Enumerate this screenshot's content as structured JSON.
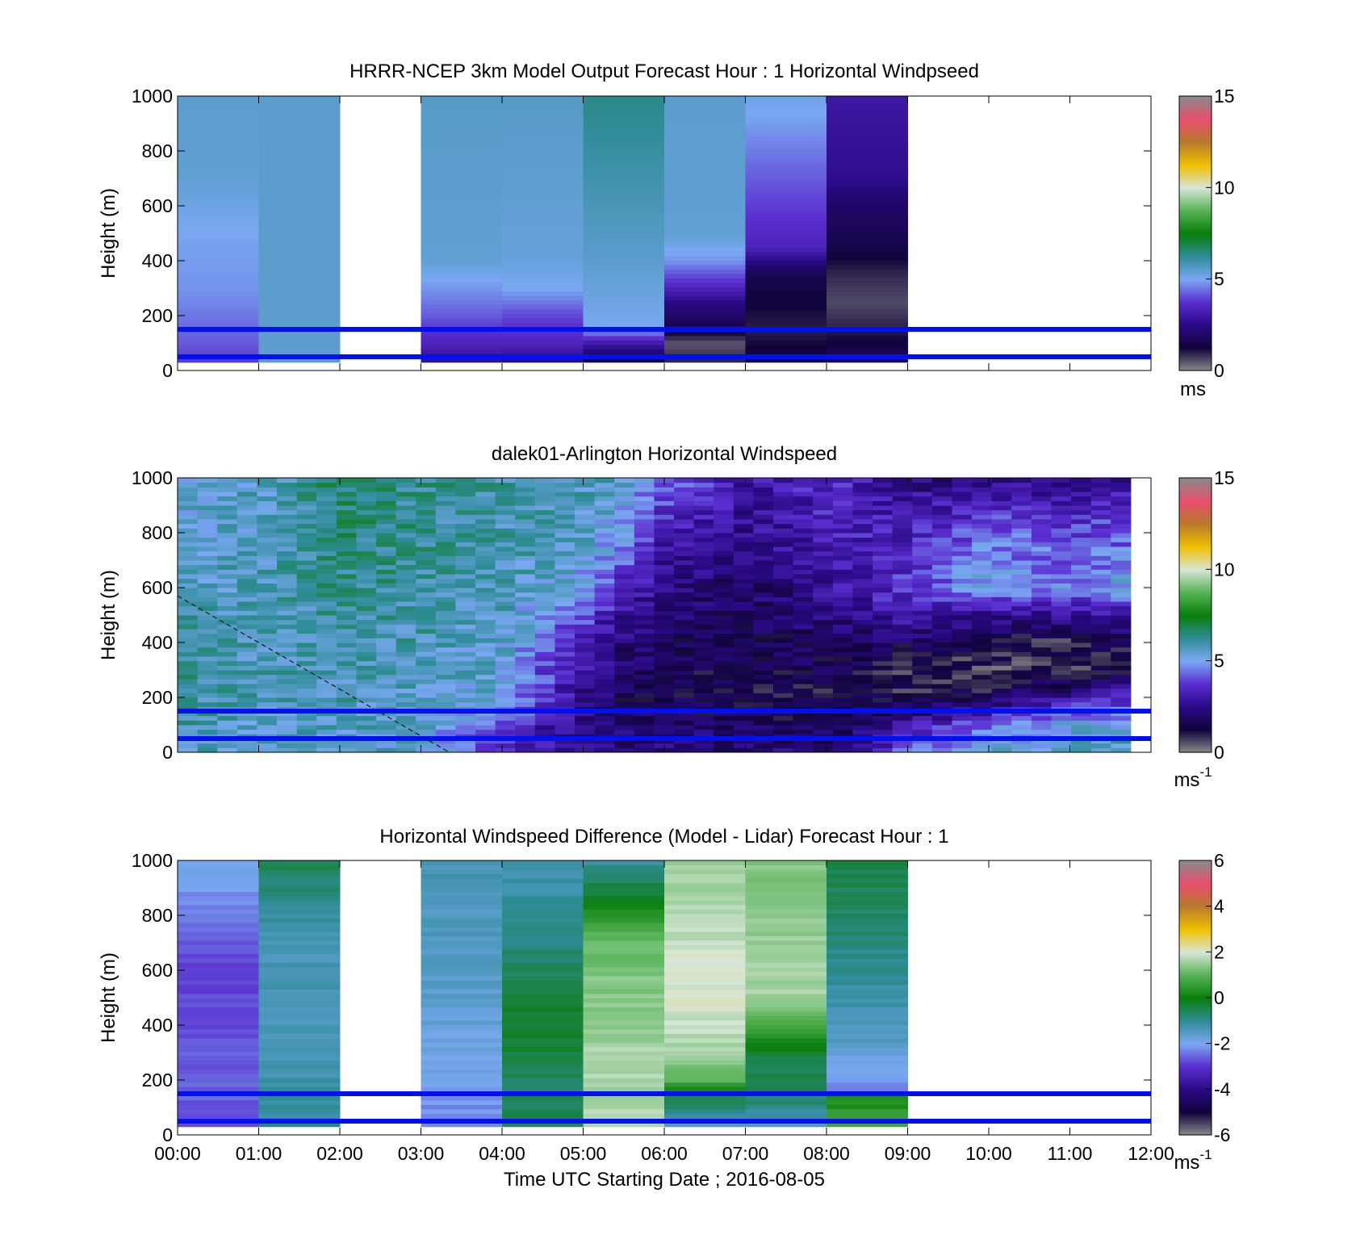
{
  "colors": {
    "speed_colormap": [
      "#8a8a8a",
      "#11043a",
      "#2a0a86",
      "#5a2ed0",
      "#7aa8f2",
      "#2e8c96",
      "#0a7e0a",
      "#56b356",
      "#d7e6d7",
      "#f0c000",
      "#b77a2c",
      "#e8506e",
      "#8a8a8a"
    ],
    "diff_colormap": [
      "#8a8a8a",
      "#11043a",
      "#2a0a86",
      "#5a2ed0",
      "#7aa8f2",
      "#2e8c96",
      "#0a7e0a",
      "#56b356",
      "#d7e6d7",
      "#f0c000",
      "#b77a2c",
      "#e8506e",
      "#8a8a8a"
    ],
    "reference_lines": "#0010ee"
  },
  "chart_data": [
    {
      "type": "heatmap",
      "title": "HRRR-NCEP 3km Model Output   Forecast Hour : 1 Horizontal Windpseed",
      "xlabel": "",
      "ylabel": "Height (m)",
      "xlim": [
        "00:00",
        "12:00"
      ],
      "ylim": [
        0,
        1000
      ],
      "xticks": [
        "00:00",
        "01:00",
        "02:00",
        "03:00",
        "04:00",
        "05:00",
        "06:00",
        "07:00",
        "08:00",
        "09:00",
        "10:00",
        "11:00",
        "12:00"
      ],
      "yticks": [
        "0",
        "200",
        "400",
        "600",
        "800",
        "1000"
      ],
      "show_xtick_labels": false,
      "colorbar": {
        "min": 0,
        "max": 15,
        "ticks": [
          "0",
          "5",
          "10",
          "15"
        ],
        "unit": "ms",
        "unit_sup": ""
      },
      "reference_lines_m": [
        50,
        150
      ],
      "data_height_range_m": [
        30,
        1000
      ],
      "hour_columns": [
        {
          "hour": 0,
          "heights_m": [
            30,
            100,
            200,
            300,
            450,
            600,
            700,
            1000
          ],
          "values": [
            3.8,
            4.2,
            4.5,
            4.8,
            4.9,
            5.2,
            5.4,
            5.5
          ]
        },
        {
          "hour": 1,
          "heights_m": [
            30,
            1000
          ],
          "values": [
            5.5,
            5.5
          ]
        },
        {
          "hour": 3,
          "heights_m": [
            30,
            100,
            200,
            300,
            400,
            1000
          ],
          "values": [
            2.6,
            3.4,
            4.2,
            4.8,
            5.4,
            5.6
          ]
        },
        {
          "hour": 4,
          "heights_m": [
            30,
            100,
            200,
            300,
            400,
            1000
          ],
          "values": [
            2.4,
            3.4,
            4.0,
            5.0,
            5.3,
            5.6
          ]
        },
        {
          "hour": 5,
          "heights_m": [
            30,
            60,
            100,
            150,
            400,
            1000
          ],
          "values": [
            1.2,
            2.0,
            3.0,
            5.0,
            5.5,
            6.4
          ]
        },
        {
          "hour": 6,
          "heights_m": [
            30,
            60,
            100,
            150,
            200,
            250,
            300,
            400,
            500,
            1000
          ],
          "values": [
            1.0,
            0.8,
            0.5,
            1.5,
            2.0,
            2.5,
            3.4,
            4.8,
            5.4,
            5.5
          ]
        },
        {
          "hour": 7,
          "heights_m": [
            30,
            100,
            150,
            250,
            350,
            450,
            1000
          ],
          "values": [
            1.5,
            1.2,
            1.0,
            1.3,
            1.6,
            3.4,
            5.2
          ]
        },
        {
          "hour": 8,
          "heights_m": [
            30,
            80,
            150,
            250,
            350,
            450,
            600,
            700,
            1000
          ],
          "values": [
            1.8,
            1.5,
            1.0,
            0.6,
            0.9,
            1.5,
            2.0,
            2.6,
            3.0
          ]
        }
      ]
    },
    {
      "type": "heatmap",
      "title": "dalek01-Arlington  Horizontal Windspeed",
      "xlabel": "",
      "ylabel": "Height (m)",
      "xlim": [
        "00:00",
        "12:00"
      ],
      "ylim": [
        0,
        1000
      ],
      "xticks": [
        "00:00",
        "01:00",
        "02:00",
        "03:00",
        "04:00",
        "05:00",
        "06:00",
        "07:00",
        "08:00",
        "09:00",
        "10:00",
        "11:00",
        "12:00"
      ],
      "yticks": [
        "0",
        "200",
        "400",
        "600",
        "800",
        "1000"
      ],
      "show_xtick_labels": false,
      "colorbar": {
        "min": 0,
        "max": 15,
        "ticks": [
          "0",
          "5",
          "10",
          "15"
        ],
        "unit": "ms",
        "unit_sup": "-1"
      },
      "reference_lines_m": [
        50,
        150
      ],
      "data_range_hours": [
        0,
        11.75
      ],
      "dashed_line": {
        "from": [
          0,
          570
        ],
        "to": [
          3.35,
          0
        ]
      },
      "vertical_profiles": [
        {
          "hour": 0.0,
          "heights_m": [
            0,
            200,
            400,
            600,
            800,
            1000
          ],
          "values": [
            5.8,
            6.2,
            6.0,
            5.7,
            5.5,
            5.4
          ]
        },
        {
          "hour": 1.0,
          "heights_m": [
            0,
            200,
            400,
            600,
            800,
            1000
          ],
          "values": [
            5.5,
            5.7,
            5.8,
            5.7,
            5.6,
            5.6
          ]
        },
        {
          "hour": 2.0,
          "heights_m": [
            0,
            200,
            400,
            600,
            800,
            1000
          ],
          "values": [
            5.6,
            5.8,
            6.0,
            6.3,
            6.5,
            6.6
          ]
        },
        {
          "hour": 3.0,
          "heights_m": [
            0,
            200,
            400,
            600,
            800,
            1000
          ],
          "values": [
            5.4,
            5.6,
            5.8,
            6.0,
            6.2,
            6.3
          ]
        },
        {
          "hour": 4.0,
          "heights_m": [
            0,
            100,
            200,
            400,
            600,
            800,
            1000
          ],
          "values": [
            3.2,
            4.0,
            5.2,
            5.5,
            5.8,
            5.9,
            6.0
          ]
        },
        {
          "hour": 5.0,
          "heights_m": [
            0,
            100,
            200,
            400,
            600,
            800,
            1000
          ],
          "values": [
            2.6,
            2.2,
            2.6,
            3.3,
            5.0,
            5.6,
            5.8
          ]
        },
        {
          "hour": 5.5,
          "heights_m": [
            0,
            100,
            200,
            400,
            600,
            800,
            1000
          ],
          "values": [
            2.4,
            2.0,
            1.8,
            2.2,
            3.4,
            5.0,
            5.3
          ]
        },
        {
          "hour": 6.0,
          "heights_m": [
            0,
            100,
            200,
            400,
            600,
            800,
            1000
          ],
          "values": [
            2.4,
            2.0,
            1.6,
            1.8,
            2.4,
            3.2,
            4.5
          ]
        },
        {
          "hour": 7.0,
          "heights_m": [
            0,
            100,
            200,
            400,
            600,
            800,
            1000
          ],
          "values": [
            2.2,
            1.8,
            1.4,
            1.6,
            1.9,
            2.6,
            3.0
          ]
        },
        {
          "hour": 8.0,
          "heights_m": [
            0,
            100,
            200,
            400,
            600,
            800,
            1000
          ],
          "values": [
            2.2,
            1.6,
            1.3,
            1.9,
            2.8,
            3.2,
            3.6
          ]
        },
        {
          "hour": 9.0,
          "heights_m": [
            0,
            100,
            200,
            300,
            400,
            500,
            600,
            800,
            1000
          ],
          "values": [
            4.2,
            2.8,
            1.2,
            1.0,
            1.8,
            3.2,
            3.8,
            3.4,
            2.4
          ]
        },
        {
          "hour": 10.0,
          "heights_m": [
            0,
            100,
            200,
            300,
            400,
            500,
            600,
            800,
            1000
          ],
          "values": [
            5.2,
            4.6,
            1.6,
            0.8,
            1.2,
            2.6,
            5.0,
            4.4,
            2.4
          ]
        },
        {
          "hour": 11.0,
          "heights_m": [
            0,
            100,
            200,
            300,
            400,
            500,
            600,
            800,
            1000
          ],
          "values": [
            5.6,
            5.2,
            2.8,
            0.9,
            1.0,
            2.6,
            4.6,
            4.0,
            2.6
          ]
        },
        {
          "hour": 11.75,
          "heights_m": [
            0,
            100,
            200,
            300,
            400,
            500,
            600,
            800,
            1000
          ],
          "values": [
            5.8,
            5.4,
            3.6,
            1.2,
            1.6,
            3.0,
            5.2,
            4.2,
            2.8
          ]
        }
      ]
    },
    {
      "type": "heatmap",
      "title": "Horizontal Windspeed Difference (Model - Lidar) Forecast Hour : 1",
      "xlabel": "Time UTC  Starting Date ; 2016-08-05",
      "ylabel": "Height (m)",
      "xlim": [
        "00:00",
        "12:00"
      ],
      "ylim": [
        0,
        1000
      ],
      "xticks": [
        "00:00",
        "01:00",
        "02:00",
        "03:00",
        "04:00",
        "05:00",
        "06:00",
        "07:00",
        "08:00",
        "09:00",
        "10:00",
        "11:00",
        "12:00"
      ],
      "yticks": [
        "0",
        "200",
        "400",
        "600",
        "800",
        "1000"
      ],
      "show_xtick_labels": true,
      "colorbar": {
        "min": -6,
        "max": 6,
        "ticks": [
          "-6",
          "-4",
          "-2",
          "0",
          "2",
          "4",
          "6"
        ],
        "unit": "ms",
        "unit_sup": "-1"
      },
      "reference_lines_m": [
        50,
        150
      ],
      "data_height_range_m": [
        30,
        1000
      ],
      "hour_columns": [
        {
          "hour": 0,
          "heights_m": [
            30,
            300,
            600,
            1000
          ],
          "values": [
            -2.6,
            -2.7,
            -2.9,
            -1.8
          ]
        },
        {
          "hour": 1,
          "heights_m": [
            30,
            400,
            700,
            1000
          ],
          "values": [
            -1.0,
            -1.4,
            -1.3,
            -0.5
          ]
        },
        {
          "hour": 3,
          "heights_m": [
            30,
            200,
            500,
            1000
          ],
          "values": [
            -2.3,
            -2.0,
            -1.6,
            -1.3
          ]
        },
        {
          "hour": 4,
          "heights_m": [
            30,
            200,
            400,
            700,
            1000
          ],
          "values": [
            -0.5,
            -0.6,
            -0.2,
            -0.8,
            -1.3
          ]
        },
        {
          "hour": 5,
          "heights_m": [
            30,
            300,
            600,
            750,
            850,
            1000
          ],
          "values": [
            1.7,
            1.6,
            1.3,
            0.9,
            -0.1,
            -1.1
          ]
        },
        {
          "hour": 6,
          "heights_m": [
            30,
            150,
            200,
            300,
            500,
            1000
          ],
          "values": [
            -1.6,
            -0.3,
            1.0,
            1.6,
            2.1,
            1.5
          ]
        },
        {
          "hour": 7,
          "heights_m": [
            30,
            150,
            300,
            400,
            500,
            1000
          ],
          "values": [
            -1.4,
            -0.6,
            -0.3,
            0.9,
            1.6,
            1.3
          ]
        },
        {
          "hour": 8,
          "heights_m": [
            30,
            140,
            160,
            300,
            600,
            1000
          ],
          "values": [
            0.8,
            0.2,
            -2.4,
            -1.6,
            -1.0,
            -0.4
          ]
        }
      ]
    }
  ]
}
